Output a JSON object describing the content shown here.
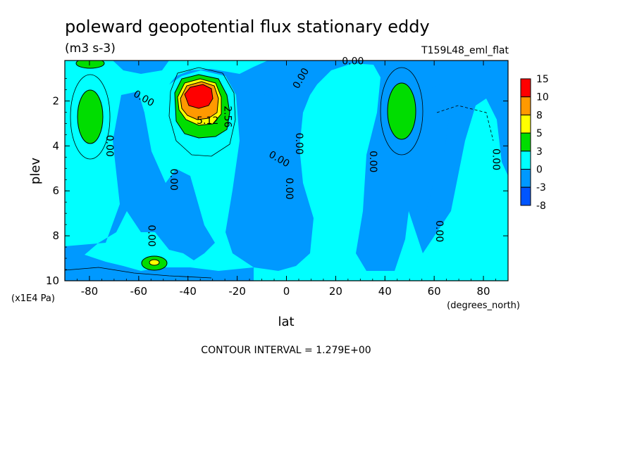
{
  "chart_data": {
    "type": "heatmap",
    "title": "poleward geopotential flux stationary eddy",
    "units": "(m3 s-3)",
    "run_label": "T159L48_eml_flat",
    "xlabel": "lat",
    "x_units": "(degrees_north)",
    "ylabel": "plev",
    "y_units": "(x1E4 Pa)",
    "xlim": [
      -90,
      90
    ],
    "ylim": [
      10,
      0.2
    ],
    "x_ticks": [
      -80,
      -60,
      -40,
      -20,
      0,
      20,
      40,
      60,
      80
    ],
    "x_tick_labels": [
      "-80",
      "-60",
      "-40",
      "-20",
      "0",
      "20",
      "40",
      "60",
      "80"
    ],
    "y_ticks": [
      2,
      4,
      6,
      8,
      10
    ],
    "y_tick_labels": [
      "2",
      "4",
      "6",
      "8",
      "10"
    ],
    "contour_interval_text": "CONTOUR INTERVAL = 1.279E+00",
    "colorbar": {
      "labels": [
        "15",
        "10",
        "8",
        "5",
        "3",
        "0",
        "-3",
        "-8"
      ],
      "colors": [
        "#ff0000",
        "#ff9900",
        "#ffff00",
        "#00dd00",
        "#00ffff",
        "#0099ff",
        "#0055ff"
      ]
    },
    "contour_labels": [
      {
        "text": "0.00",
        "lat": -72,
        "plev": 4.0,
        "rotate": 90
      },
      {
        "text": "0.00",
        "lat": -46,
        "plev": 5.5,
        "rotate": 90
      },
      {
        "text": "0.00",
        "lat": -55,
        "plev": 8.0,
        "rotate": 90
      },
      {
        "text": "0.00",
        "lat": -58,
        "plev": 1.9,
        "rotate": 30
      },
      {
        "text": "5.12",
        "lat": -32,
        "plev": 2.9,
        "rotate": 0
      },
      {
        "text": "2.56",
        "lat": -24,
        "plev": 2.7,
        "rotate": 90
      },
      {
        "text": "0.00",
        "lat": 6,
        "plev": 1.0,
        "rotate": -60
      },
      {
        "text": "0.00",
        "lat": -3,
        "plev": 4.6,
        "rotate": 30
      },
      {
        "text": "0.00",
        "lat": 1,
        "plev": 5.9,
        "rotate": 90
      },
      {
        "text": "0.00",
        "lat": 5,
        "plev": 3.9,
        "rotate": 90
      },
      {
        "text": "0.00",
        "lat": 27,
        "plev": 0.25,
        "rotate": 0
      },
      {
        "text": "0.00",
        "lat": 35,
        "plev": 4.7,
        "rotate": 90
      },
      {
        "text": "0.00",
        "lat": 62,
        "plev": 7.8,
        "rotate": 90
      },
      {
        "text": "0.00",
        "lat": 85,
        "plev": 4.6,
        "rotate": 90
      }
    ],
    "regions": [
      {
        "level": "0 to 3",
        "color": "#00ffff",
        "lat_range": [
          -90,
          90
        ],
        "plev_range": [
          0.2,
          10
        ]
      },
      {
        "level": "-3 to 0",
        "color": "#0099ff",
        "lat": -70,
        "plev": 5.0
      },
      {
        "level": "-3 to 0",
        "color": "#0099ff",
        "lat": -25,
        "plev": 4.5
      },
      {
        "level": "-3 to 0",
        "color": "#0099ff",
        "lat": 15,
        "plev": 6.0
      },
      {
        "level": "-3 to 0",
        "color": "#0099ff",
        "lat": 70,
        "plev": 4.0
      },
      {
        "level": "3 to 5",
        "color": "#00dd00",
        "lat": -79,
        "plev": 2.6
      },
      {
        "level": "3 to 5",
        "color": "#00dd00",
        "lat": 47,
        "plev": 2.5
      },
      {
        "level": "3 to 5",
        "color": "#00dd00",
        "lat": -54,
        "plev": 9.2
      },
      {
        "level": "5 to 8",
        "color": "#ffff00",
        "lat": -35,
        "plev": 2.2
      },
      {
        "level": "8 to 10",
        "color": "#ff9900",
        "lat": -35,
        "plev": 1.9
      },
      {
        "level": "10 to 15",
        "color": "#ff0000",
        "lat": -35,
        "plev": 1.7
      }
    ]
  }
}
